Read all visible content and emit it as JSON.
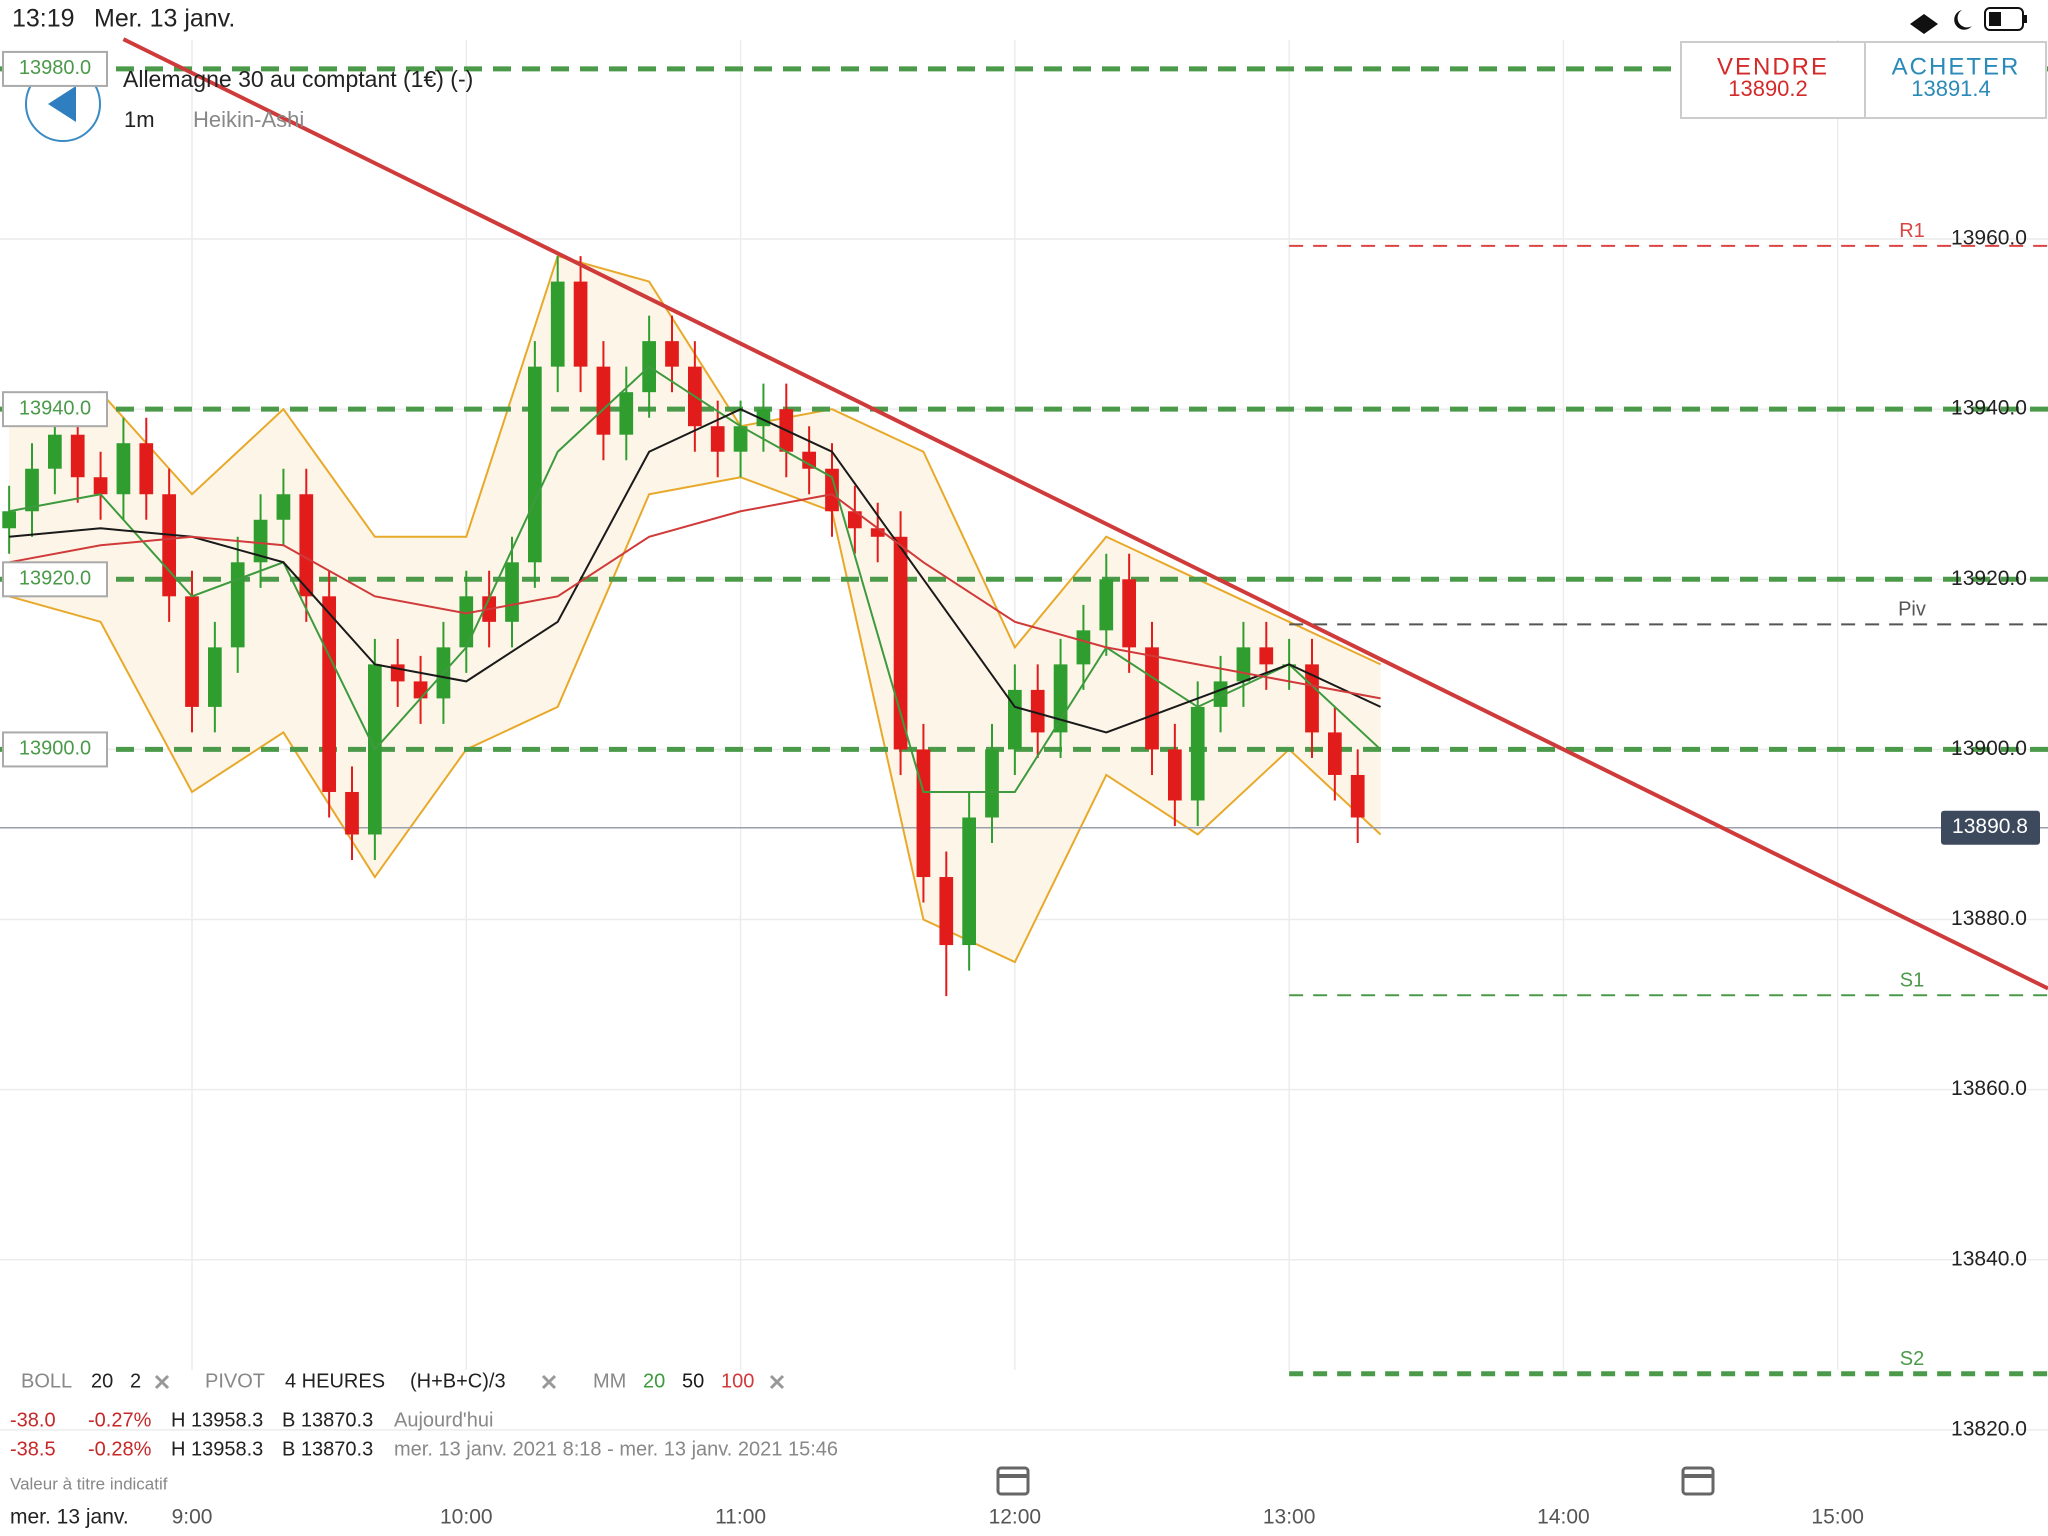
{
  "status_bar": {
    "time": "13:19",
    "date": "Mer. 13 janv."
  },
  "header": {
    "instrument": "Allemagne 30 au comptant (1€) (-)",
    "interval": "1m",
    "chart_style": "Heikin-Ashi"
  },
  "trade": {
    "sell_label": "VENDRE",
    "sell_price": "13890.2",
    "buy_label": "ACHETER",
    "buy_price": "13891.4"
  },
  "chart_data": {
    "type": "candlestick",
    "xlim": [
      "8:18",
      "15:46"
    ],
    "xticks": [
      "9:00",
      "10:00",
      "11:00",
      "12:00",
      "13:00",
      "14:00",
      "15:00"
    ],
    "ylim": [
      13810,
      13985
    ],
    "yticks": [
      {
        "value": 13820,
        "label": "13820.0"
      },
      {
        "value": 13840,
        "label": "13840.0"
      },
      {
        "value": 13860,
        "label": "13860.0"
      },
      {
        "value": 13880,
        "label": "13880.0"
      },
      {
        "value": 13900,
        "label": "13900.0"
      },
      {
        "value": 13920,
        "label": "13920.0"
      },
      {
        "value": 13940,
        "label": "13940.0"
      },
      {
        "value": 13960,
        "label": "13960.0"
      }
    ],
    "grid": true,
    "up_color": "#2f9e2f",
    "down_color": "#e21b1b",
    "candles": {
      "x": [
        "8:20",
        "8:25",
        "8:30",
        "8:35",
        "8:40",
        "8:45",
        "8:50",
        "8:55",
        "9:00",
        "9:05",
        "9:10",
        "9:15",
        "9:20",
        "9:25",
        "9:30",
        "9:35",
        "9:40",
        "9:45",
        "9:50",
        "9:55",
        "10:00",
        "10:05",
        "10:10",
        "10:15",
        "10:20",
        "10:25",
        "10:30",
        "10:35",
        "10:40",
        "10:45",
        "10:50",
        "10:55",
        "11:00",
        "11:05",
        "11:10",
        "11:15",
        "11:20",
        "11:25",
        "11:30",
        "11:35",
        "11:40",
        "11:45",
        "11:50",
        "11:55",
        "12:00",
        "12:05",
        "12:10",
        "12:15",
        "12:20",
        "12:25",
        "12:30",
        "12:35",
        "12:40",
        "12:45",
        "12:50",
        "12:55",
        "13:00",
        "13:05",
        "13:10",
        "13:15"
      ],
      "open": [
        13926,
        13928,
        13933,
        13937,
        13932,
        13930,
        13936,
        13930,
        13918,
        13905,
        13912,
        13922,
        13927,
        13930,
        13918,
        13895,
        13890,
        13910,
        13908,
        13906,
        13912,
        13918,
        13915,
        13922,
        13945,
        13955,
        13945,
        13937,
        13942,
        13948,
        13945,
        13938,
        13935,
        13938,
        13940,
        13935,
        13933,
        13928,
        13926,
        13925,
        13900,
        13885,
        13877,
        13892,
        13900,
        13907,
        13902,
        13910,
        13914,
        13920,
        13912,
        13900,
        13894,
        13905,
        13908,
        13912,
        13910,
        13910,
        13902,
        13897
      ],
      "high": [
        13931,
        13936,
        13940,
        13940,
        13935,
        13939,
        13939,
        13933,
        13921,
        13915,
        13925,
        13930,
        13933,
        13933,
        13921,
        13898,
        13913,
        13913,
        13911,
        13915,
        13921,
        13921,
        13925,
        13948,
        13958,
        13958,
        13948,
        13945,
        13951,
        13951,
        13948,
        13941,
        13941,
        13943,
        13943,
        13938,
        13936,
        13931,
        13929,
        13928,
        13903,
        13888,
        13895,
        13903,
        13910,
        13910,
        13913,
        13917,
        13923,
        13923,
        13915,
        13903,
        13908,
        13911,
        13915,
        13915,
        13913,
        13913,
        13905,
        13900
      ],
      "low": [
        13923,
        13925,
        13930,
        13929,
        13927,
        13927,
        13927,
        13915,
        13902,
        13902,
        13909,
        13919,
        13924,
        13915,
        13892,
        13887,
        13887,
        13905,
        13903,
        13903,
        13909,
        13912,
        13912,
        13919,
        13942,
        13942,
        13934,
        13934,
        13939,
        13942,
        13935,
        13932,
        13932,
        13935,
        13932,
        13930,
        13925,
        13923,
        13922,
        13897,
        13882,
        13871,
        13874,
        13889,
        13897,
        13899,
        13899,
        13907,
        13911,
        13909,
        13897,
        13891,
        13891,
        13902,
        13905,
        13907,
        13907,
        13899,
        13894,
        13889
      ],
      "close": [
        13928,
        13933,
        13937,
        13932,
        13930,
        13936,
        13930,
        13918,
        13905,
        13912,
        13922,
        13927,
        13930,
        13918,
        13895,
        13890,
        13910,
        13908,
        13906,
        13912,
        13918,
        13915,
        13922,
        13945,
        13955,
        13945,
        13937,
        13942,
        13948,
        13945,
        13938,
        13935,
        13938,
        13940,
        13935,
        13933,
        13928,
        13926,
        13925,
        13900,
        13885,
        13877,
        13892,
        13900,
        13907,
        13902,
        13910,
        13914,
        13920,
        13912,
        13900,
        13894,
        13905,
        13908,
        13912,
        13910,
        13910,
        13902,
        13897,
        13892
      ]
    },
    "line_x": [
      "8:20",
      "8:40",
      "9:00",
      "9:20",
      "9:40",
      "10:00",
      "10:20",
      "10:40",
      "11:00",
      "11:20",
      "11:40",
      "12:00",
      "12:20",
      "12:40",
      "13:00",
      "13:20"
    ],
    "series": [
      {
        "name": "20",
        "color": "#3e9a3e",
        "values": [
          13928,
          13930,
          13918,
          13922,
          13900,
          13912,
          13935,
          13945,
          13938,
          13932,
          13895,
          13895,
          13912,
          13905,
          13910,
          13900
        ]
      },
      {
        "name": "50",
        "color": "#1a1a1a",
        "values": [
          13925,
          13926,
          13925,
          13922,
          13910,
          13908,
          13915,
          13935,
          13940,
          13935,
          13920,
          13905,
          13902,
          13906,
          13910,
          13905
        ]
      },
      {
        "name": "100",
        "color": "#d03a3a",
        "values": [
          13922,
          13924,
          13925,
          13924,
          13918,
          13916,
          13918,
          13925,
          13928,
          13930,
          13922,
          13915,
          13912,
          13910,
          13908,
          13906
        ]
      }
    ],
    "bands": {
      "color": "#e8a92a",
      "fill": "#fdf6e8",
      "upper": [
        13940,
        13942,
        13930,
        13940,
        13925,
        13925,
        13958,
        13955,
        13938,
        13940,
        13935,
        13912,
        13925,
        13920,
        13915,
        13910
      ],
      "lower": [
        13918,
        13915,
        13895,
        13902,
        13885,
        13900,
        13905,
        13930,
        13932,
        13928,
        13880,
        13875,
        13897,
        13890,
        13900,
        13890
      ]
    },
    "level_color": "#4a9a4a",
    "levels": [
      {
        "value": 13980,
        "label": "13980.0"
      },
      {
        "value": 13940,
        "label": "13940.0"
      },
      {
        "value": 13920,
        "label": "13920.0"
      },
      {
        "value": 13900,
        "label": "13900.0"
      }
    ],
    "pivot_start": "13:00",
    "pivots": [
      {
        "name": "R1",
        "value": 13959.2,
        "color": "#d94545",
        "line_width": 2
      },
      {
        "name": "Piv",
        "value": 13914.7,
        "color": "#555555",
        "line_width": 2
      },
      {
        "name": "S1",
        "value": 13871.1,
        "color": "#4a9a4a",
        "line_width": 2
      },
      {
        "name": "S2",
        "value": 13826.6,
        "color": "#4a9a4a",
        "line_width": 5
      }
    ],
    "current_price": {
      "value": 13890.8,
      "label": "13890.8"
    },
    "trendline": {
      "x": [
        "8:45",
        "15:46"
      ],
      "y": [
        13983.5,
        13871.9
      ],
      "color": "#cf3b3b"
    }
  },
  "indicators": {
    "boll": {
      "name": "BOLL",
      "period": "20",
      "deviation": "2"
    },
    "pivot": {
      "name": "PIVOT",
      "period": "4 HEURES",
      "formula": "(H+B+C)/3"
    },
    "mm": {
      "name": "MM"
    }
  },
  "stats": [
    {
      "change": "-38.0",
      "change_pct": "-0.27%",
      "high": "H 13958.3",
      "low": "B 13870.3",
      "range": "Aujourd'hui"
    },
    {
      "change": "-38.5",
      "change_pct": "-0.28%",
      "high": "H 13958.3",
      "low": "B 13870.3",
      "range": "mer. 13 janv. 2021 8:18 - mer. 13 janv. 2021 15:46"
    }
  ],
  "footer": {
    "disclaimer": "Valeur à titre indicatif",
    "date": "mer. 13 janv."
  }
}
